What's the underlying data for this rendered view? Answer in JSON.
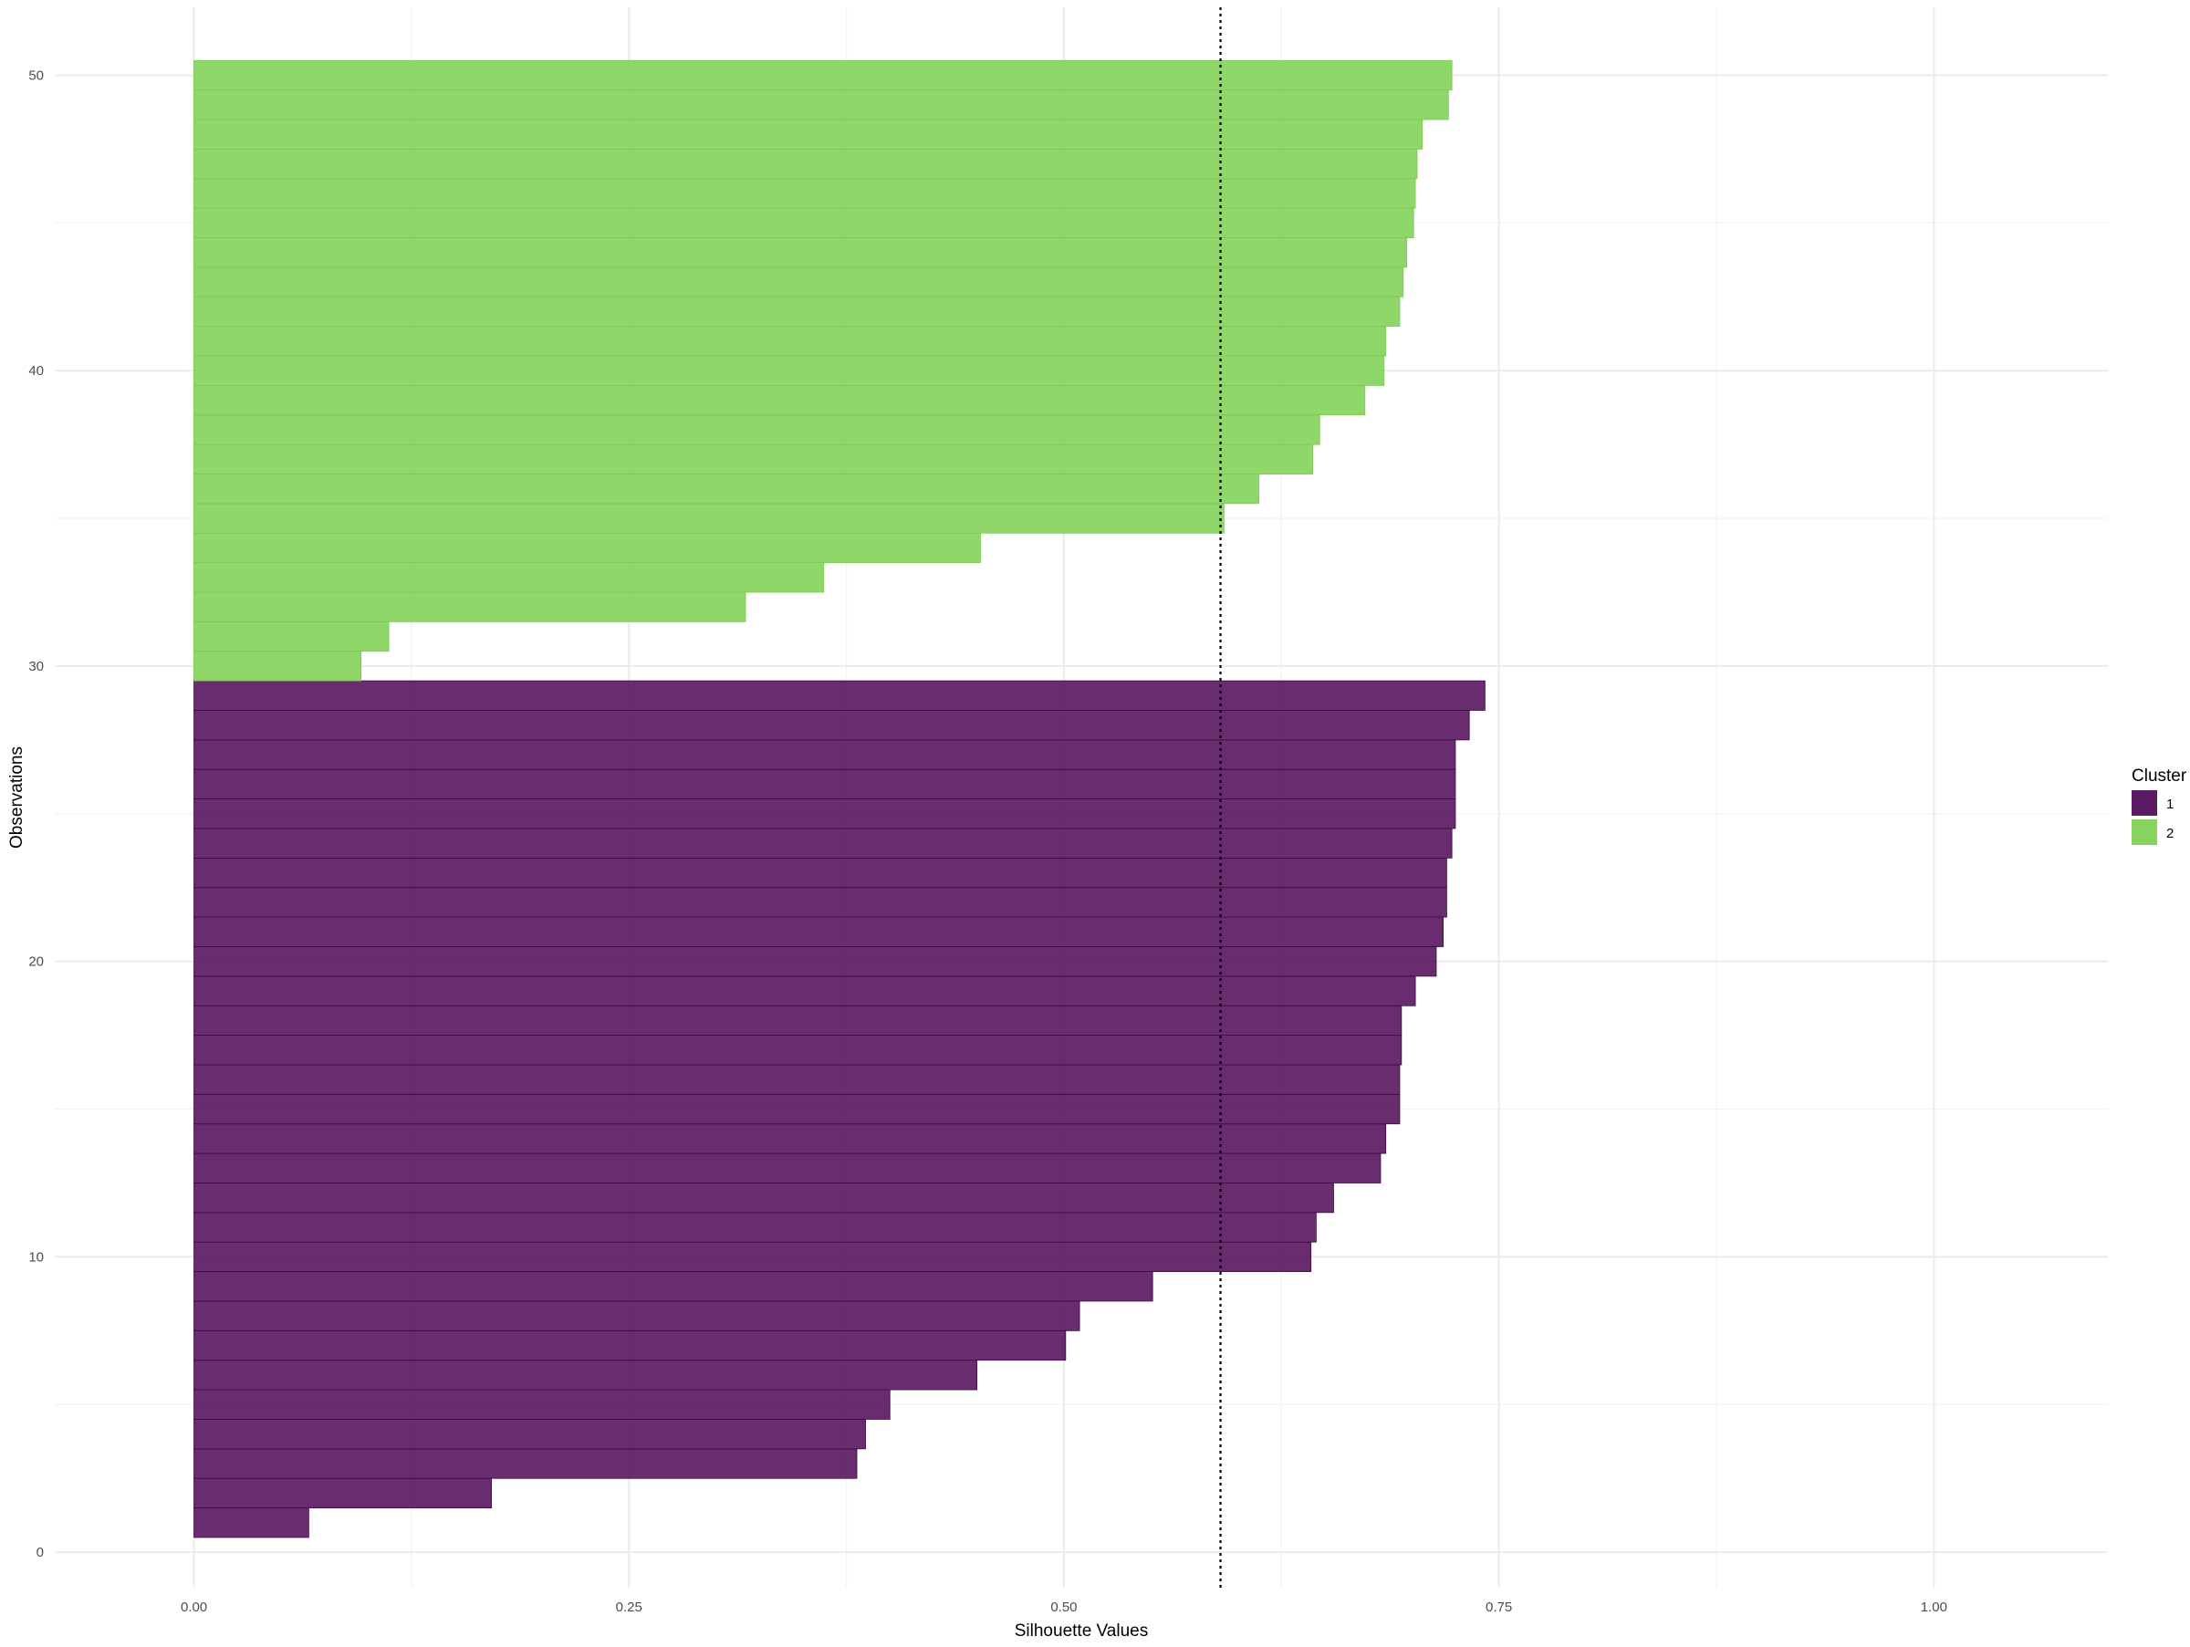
{
  "chart_data": {
    "type": "bar",
    "orientation": "horizontal",
    "xlabel": "Silhouette Values",
    "ylabel": "Observations",
    "xlim": [
      -0.08,
      1.1
    ],
    "ylim": [
      -1.2,
      52.3
    ],
    "x_ticks": [
      0.0,
      0.25,
      0.5,
      0.75,
      1.0
    ],
    "x_tick_labels": [
      "0.00",
      "0.25",
      "0.50",
      "0.75",
      "1.00"
    ],
    "y_ticks": [
      0,
      10,
      20,
      30,
      40,
      50
    ],
    "y_tick_labels": [
      "0",
      "10",
      "20",
      "30",
      "40",
      "50"
    ],
    "grid": true,
    "average_silhouette": 0.59,
    "average_line_style": "dotted",
    "legend": {
      "title": "Cluster",
      "position": "right",
      "entries": [
        {
          "label": "1",
          "color": "#5c1a62"
        },
        {
          "label": "2",
          "color": "#86d45b"
        }
      ]
    },
    "series": [
      {
        "name": "1",
        "color": "#5c1a62",
        "observations": [
          1,
          2,
          3,
          4,
          5,
          6,
          7,
          8,
          9,
          10,
          11,
          12,
          13,
          14,
          15,
          16,
          17,
          18,
          19,
          20,
          21,
          22,
          23,
          24,
          25,
          26,
          27,
          28,
          29
        ],
        "values": [
          0.066,
          0.171,
          0.381,
          0.386,
          0.4,
          0.45,
          0.501,
          0.509,
          0.551,
          0.642,
          0.645,
          0.655,
          0.682,
          0.685,
          0.693,
          0.693,
          0.694,
          0.694,
          0.702,
          0.714,
          0.718,
          0.72,
          0.72,
          0.723,
          0.725,
          0.725,
          0.725,
          0.733,
          0.742
        ]
      },
      {
        "name": "2",
        "color": "#86d45b",
        "observations": [
          30,
          31,
          32,
          33,
          34,
          35,
          36,
          37,
          38,
          39,
          40,
          41,
          42,
          43,
          44,
          45,
          46,
          47,
          48,
          49,
          50
        ],
        "values": [
          0.096,
          0.112,
          0.317,
          0.362,
          0.452,
          0.592,
          0.612,
          0.643,
          0.647,
          0.673,
          0.684,
          0.685,
          0.693,
          0.695,
          0.697,
          0.701,
          0.702,
          0.703,
          0.706,
          0.721,
          0.723
        ]
      }
    ]
  }
}
